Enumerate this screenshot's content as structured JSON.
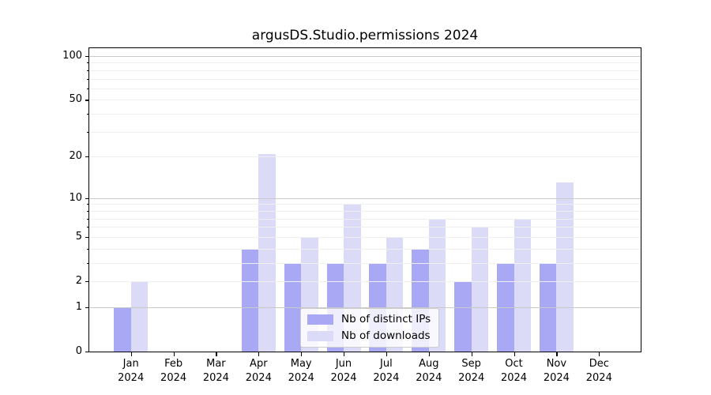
{
  "chart_data": {
    "type": "bar",
    "title": "argusDS.Studio.permissions 2024",
    "categories": [
      {
        "month": "Jan",
        "year": "2024"
      },
      {
        "month": "Feb",
        "year": "2024"
      },
      {
        "month": "Mar",
        "year": "2024"
      },
      {
        "month": "Apr",
        "year": "2024"
      },
      {
        "month": "May",
        "year": "2024"
      },
      {
        "month": "Jun",
        "year": "2024"
      },
      {
        "month": "Jul",
        "year": "2024"
      },
      {
        "month": "Aug",
        "year": "2024"
      },
      {
        "month": "Sep",
        "year": "2024"
      },
      {
        "month": "Oct",
        "year": "2024"
      },
      {
        "month": "Nov",
        "year": "2024"
      },
      {
        "month": "Dec",
        "year": "2024"
      }
    ],
    "series": [
      {
        "name": "Nb of distinct IPs",
        "color": "#a8a8f5",
        "values": [
          1,
          0,
          0,
          4,
          3,
          3,
          3,
          4,
          2,
          3,
          3,
          0
        ]
      },
      {
        "name": "Nb of downloads",
        "color": "#dbdbf7",
        "values": [
          2,
          0,
          0,
          21,
          5,
          9,
          5,
          7,
          6,
          7,
          13,
          0
        ]
      }
    ],
    "yscale": "log1p",
    "ylim": [
      0,
      113
    ],
    "ytick_labels": [
      100,
      50,
      20,
      10,
      5,
      2,
      1,
      0
    ],
    "major_gridlines": [
      1,
      10,
      100
    ],
    "minor_gridlines": [
      2,
      3,
      4,
      5,
      6,
      7,
      8,
      9,
      20,
      30,
      40,
      50,
      60,
      70,
      80,
      90
    ],
    "grid": true,
    "legend_position": "lower center",
    "xlabel": "",
    "ylabel": ""
  },
  "colors": {
    "grid_major": "#c9c9c9",
    "grid_minor": "#efefef",
    "axis": "#000000",
    "legend_border": "#cccccc"
  }
}
